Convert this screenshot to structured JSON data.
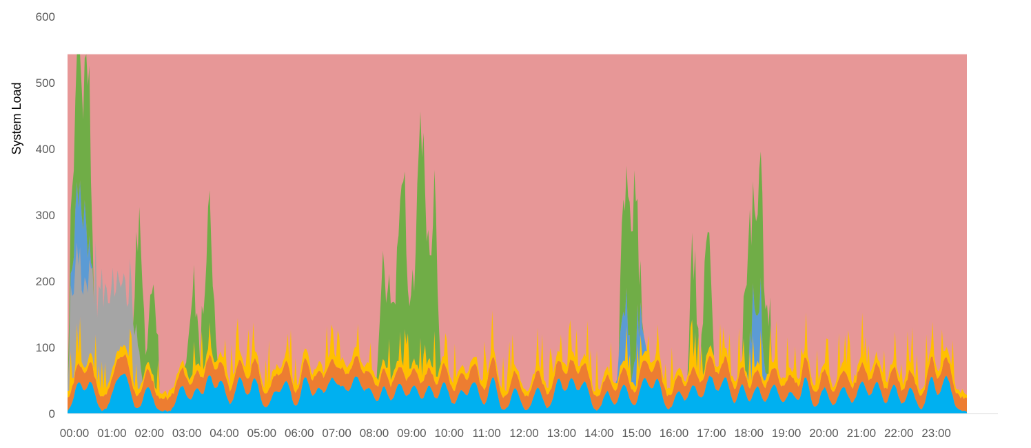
{
  "chart_data": {
    "type": "area",
    "stacked": true,
    "title": "",
    "xlabel": "",
    "ylabel": "System Load",
    "ylim": [
      0,
      600
    ],
    "yticks": [
      0,
      100,
      200,
      300,
      400,
      500,
      600
    ],
    "x_ticks": [
      "00:00",
      "01:00",
      "02:00",
      "03:00",
      "04:00",
      "05:00",
      "06:00",
      "07:00",
      "08:00",
      "09:00",
      "10:00",
      "11:00",
      "12:00",
      "13:00",
      "14:00",
      "15:00",
      "16:00",
      "17:00",
      "18:00",
      "19:00",
      "20:00",
      "21:00",
      "22:00",
      "23:00"
    ],
    "x_range_hours": [
      0,
      24
    ],
    "capacity_level": 543,
    "legend": "none",
    "grid": false,
    "colors": {
      "capacity": "#E79797",
      "light_blue": "#00B0F0",
      "orange": "#ED7D31",
      "yellow": "#FFC000",
      "gray": "#A5A5A5",
      "blue": "#5B9BD5",
      "green": "#70AD47",
      "axis": "#D9D9D9"
    },
    "bursts": {
      "gray": [
        [
          0.05,
          0.3,
          150
        ],
        [
          0.3,
          0.45,
          120
        ],
        [
          0.45,
          0.6,
          130
        ],
        [
          0.6,
          0.75,
          125
        ],
        [
          0.75,
          0.9,
          135
        ],
        [
          0.9,
          1.05,
          130
        ],
        [
          1.05,
          1.2,
          130
        ],
        [
          1.2,
          1.35,
          125
        ],
        [
          1.35,
          1.55,
          115
        ],
        [
          1.55,
          1.8,
          100
        ],
        [
          1.8,
          1.95,
          60
        ]
      ],
      "blue": [
        [
          0.1,
          0.5,
          95
        ],
        [
          0.35,
          0.6,
          60
        ],
        [
          14.7,
          15.0,
          70
        ],
        [
          15.1,
          15.4,
          60
        ],
        [
          18.2,
          18.6,
          90
        ]
      ],
      "green": [
        [
          0.05,
          0.35,
          160
        ],
        [
          0.25,
          0.6,
          200
        ],
        [
          0.5,
          0.65,
          150
        ],
        [
          1.8,
          2.05,
          200
        ],
        [
          2.15,
          2.4,
          140
        ],
        [
          3.2,
          3.5,
          110
        ],
        [
          3.6,
          3.85,
          160
        ],
        [
          3.75,
          3.95,
          110
        ],
        [
          8.3,
          8.55,
          150
        ],
        [
          8.55,
          8.8,
          140
        ],
        [
          8.8,
          9.05,
          280
        ],
        [
          9.1,
          9.3,
          140
        ],
        [
          9.3,
          9.55,
          340
        ],
        [
          9.45,
          9.65,
          120
        ],
        [
          9.6,
          9.85,
          170
        ],
        [
          9.75,
          9.9,
          140
        ],
        [
          14.75,
          14.95,
          160
        ],
        [
          14.9,
          15.2,
          200
        ],
        [
          15.05,
          15.3,
          120
        ],
        [
          16.6,
          16.8,
          130
        ],
        [
          16.95,
          17.2,
          190
        ],
        [
          18.05,
          18.3,
          190
        ],
        [
          18.3,
          18.55,
          190
        ],
        [
          18.45,
          18.75,
          120
        ]
      ]
    }
  }
}
